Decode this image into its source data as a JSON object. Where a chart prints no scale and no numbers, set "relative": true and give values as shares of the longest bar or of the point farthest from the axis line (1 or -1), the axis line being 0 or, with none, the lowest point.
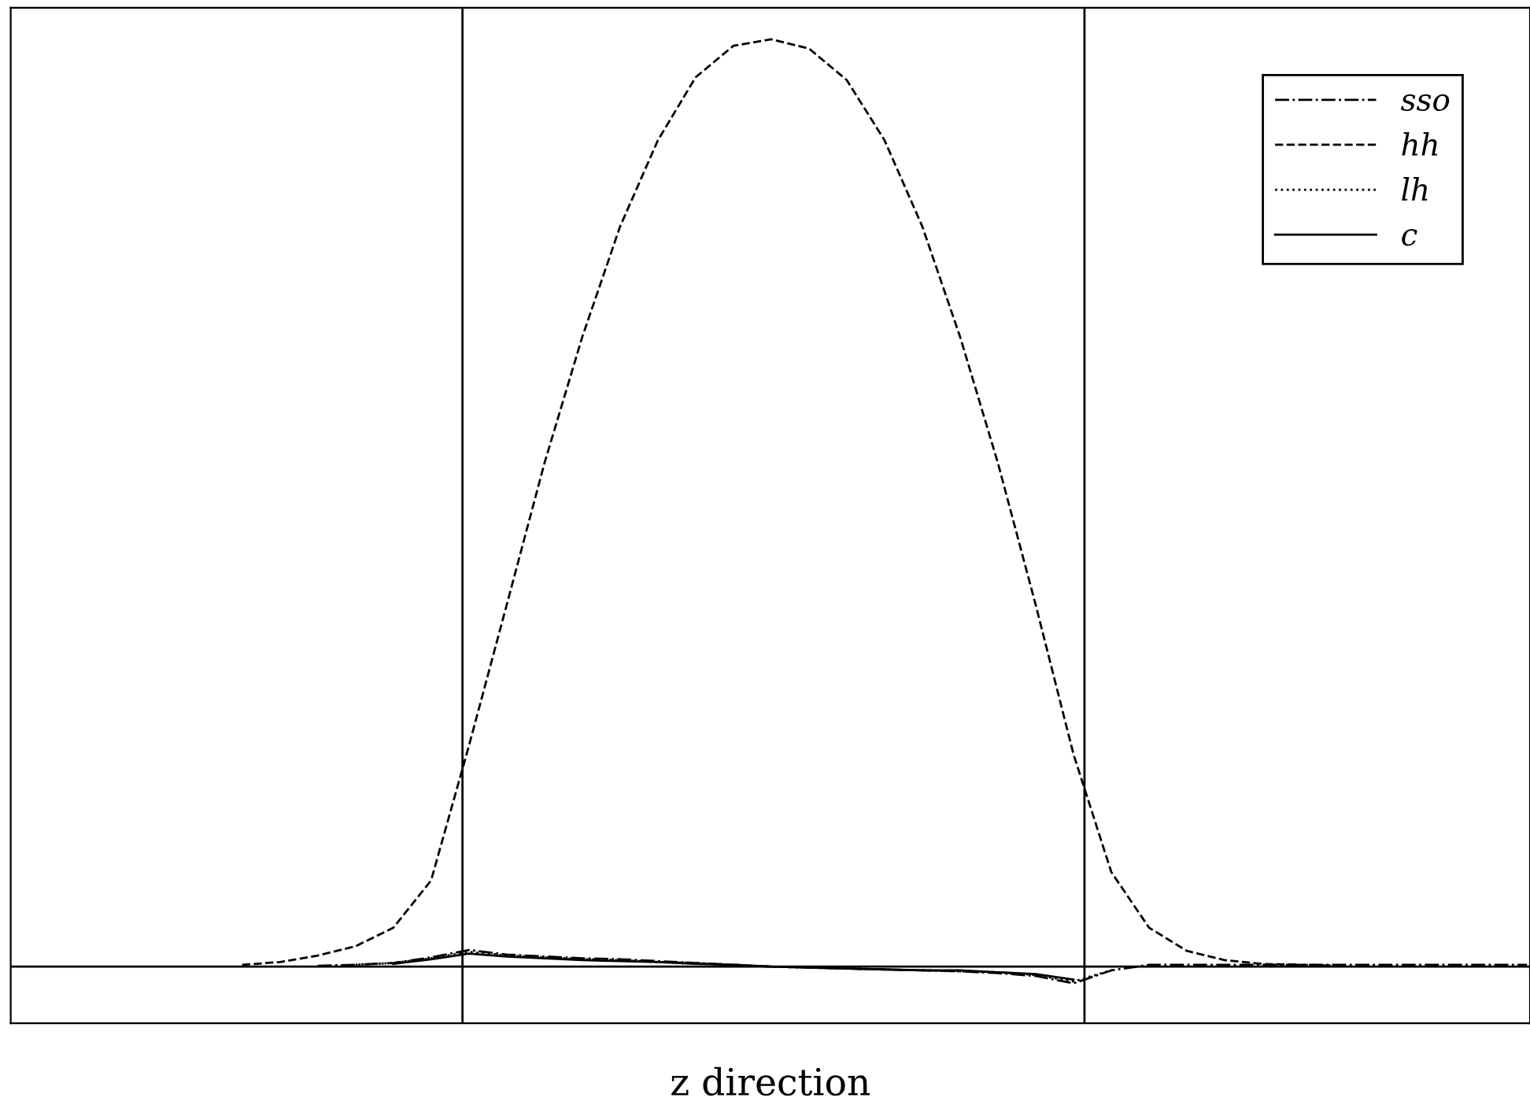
{
  "chart_data": {
    "type": "line",
    "relative": true,
    "xlabel": "z direction",
    "categories": [
      null,
      null,
      null,
      null,
      null,
      null,
      null,
      null,
      null,
      null,
      null,
      null,
      null,
      null,
      null,
      null,
      null,
      null,
      null,
      null,
      null,
      null,
      null,
      null,
      null,
      null,
      null,
      null,
      null,
      null,
      null,
      null,
      null,
      null,
      null,
      null,
      null,
      null,
      null,
      null,
      null
    ],
    "series": [
      {
        "name": "sso",
        "color": "#000000",
        "line_style": "dashdot",
        "values": [
          null,
          null,
          null,
          null,
          null,
          null,
          null,
          null,
          0.001,
          0.002,
          0.004,
          0.01,
          0.018,
          0.013,
          0.011,
          0.009,
          0.008,
          0.006,
          0.004,
          0.002,
          0,
          -0.001,
          -0.002,
          -0.003,
          -0.004,
          -0.005,
          -0.007,
          -0.01,
          -0.018,
          -0.004,
          0.002,
          0.002,
          0.002,
          0.002,
          0.002,
          0.002,
          0.002,
          0.002,
          0.002,
          0.002,
          0.002
        ]
      },
      {
        "name": "hh",
        "color": "#000000",
        "line_style": "dashed",
        "values": [
          null,
          null,
          null,
          null,
          null,
          null,
          0.002,
          0.005,
          0.012,
          0.022,
          0.042,
          0.093,
          0.238,
          0.39,
          0.543,
          0.679,
          0.798,
          0.891,
          0.959,
          0.993,
          1,
          0.99,
          0.956,
          0.891,
          0.798,
          0.679,
          0.543,
          0.39,
          0.229,
          0.102,
          0.042,
          0.017,
          0.007,
          0.003,
          0.002,
          0.001,
          null,
          null,
          null,
          null,
          null
        ]
      },
      {
        "name": "lh",
        "color": "#000000",
        "line_style": "dotted",
        "values": [
          null,
          null,
          null,
          null,
          null,
          null,
          null,
          null,
          null,
          0.002,
          0.004,
          0.009,
          0.016,
          0.012,
          0.01,
          0.008,
          0.007,
          0.005,
          0.004,
          0.002,
          0,
          -0.001,
          -0.002,
          -0.003,
          -0.004,
          -0.005,
          -0.006,
          -0.009,
          -0.016,
          -0.004,
          null,
          null,
          null,
          null,
          null,
          null,
          null,
          null,
          null,
          null,
          null
        ]
      },
      {
        "name": "c",
        "color": "#000000",
        "line_style": "solid",
        "values": [
          null,
          null,
          null,
          null,
          null,
          null,
          null,
          null,
          null,
          null,
          0.003,
          0.008,
          0.014,
          0.011,
          0.009,
          0.007,
          0.006,
          0.005,
          0.003,
          0.002,
          0,
          -0.001,
          -0.002,
          -0.003,
          -0.004,
          -0.004,
          -0.006,
          -0.008,
          -0.014,
          null,
          null,
          null,
          null,
          null,
          null,
          null,
          null,
          null,
          null,
          null,
          null
        ]
      }
    ],
    "legend": "top right",
    "grid": false,
    "marker": "none",
    "tick_labels": false
  }
}
